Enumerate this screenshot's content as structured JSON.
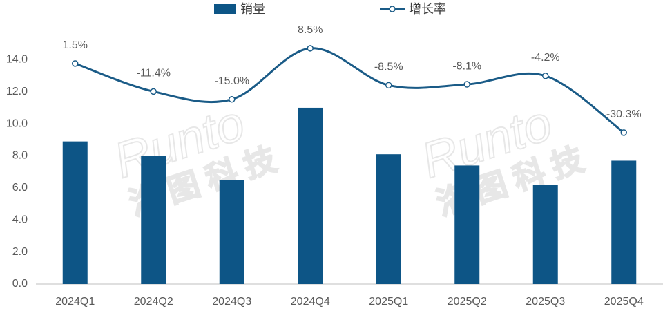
{
  "chart_data": {
    "type": "bar_line",
    "categories": [
      "2024Q1",
      "2024Q2",
      "2024Q3",
      "2024Q4",
      "2025Q1",
      "2025Q2",
      "2025Q3",
      "2025Q4"
    ],
    "series": [
      {
        "name": "销量",
        "type": "bar",
        "color": "#0d5586",
        "values": [
          8.9,
          8.0,
          6.5,
          11.0,
          8.1,
          7.4,
          6.2,
          7.7
        ]
      },
      {
        "name": "增长率",
        "type": "line",
        "axis": "y2",
        "color": "#1a5b87",
        "values": [
          1.5,
          -11.4,
          -15.0,
          8.5,
          -8.5,
          -8.1,
          -4.2,
          -30.3
        ],
        "value_labels": [
          "1.5%",
          "-11.4%",
          "-15.0%",
          "8.5%",
          "-8.5%",
          "-8.1%",
          "-4.2%",
          "-30.3%"
        ]
      }
    ],
    "ylim": [
      0,
      16
    ],
    "yticks": [
      {
        "value": 0,
        "label": "0.0"
      },
      {
        "value": 2,
        "label": "2.0"
      },
      {
        "value": 4,
        "label": "4.0"
      },
      {
        "value": 6,
        "label": "6.0"
      },
      {
        "value": 8,
        "label": "8.0"
      },
      {
        "value": 10,
        "label": "10.0"
      },
      {
        "value": 12,
        "label": "12.0"
      },
      {
        "value": 14,
        "label": "14.0"
      }
    ],
    "y2lim": [
      -100,
      18
    ],
    "legend": "top",
    "watermark": "Runto",
    "watermark_cn": "洛图科技"
  }
}
